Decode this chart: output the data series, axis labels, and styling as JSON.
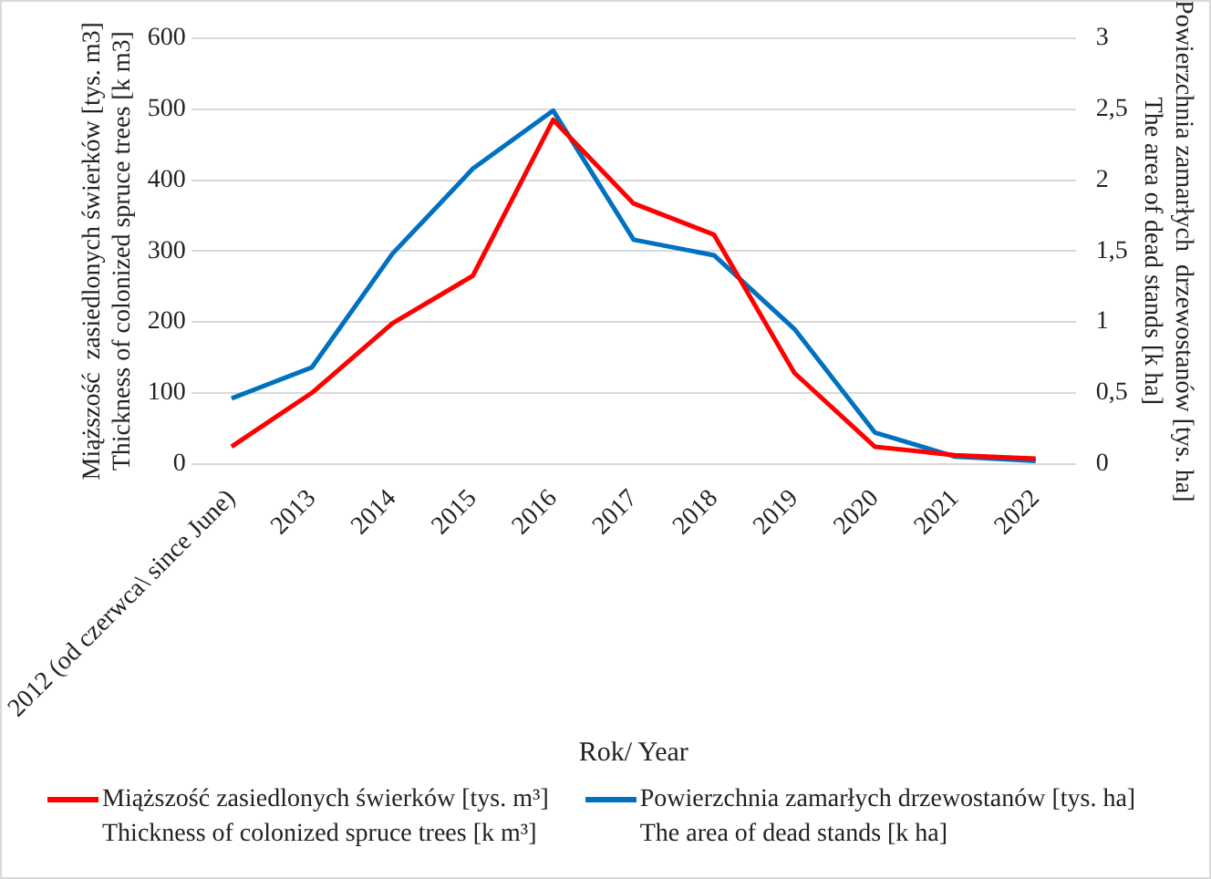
{
  "chart_data": {
    "type": "line",
    "xlabel": "Rok/ Year",
    "ylabel": "Miąższość  zasiedlonych świerków [tys. m3]\nThickness of colonized spruce trees [k m3]",
    "y2label": "Powierzchnia zamarłych  drzewostanów [tys. ha]\nThe area of dead stands [k ha]",
    "categories": [
      "2012 (od czerwca\\ since June)",
      "2013",
      "2014",
      "2015",
      "2016",
      "2017",
      "2018",
      "2019",
      "2020",
      "2021",
      "2022"
    ],
    "series": [
      {
        "name": "Miąższość zasiedlonych świerków [tys. m³]\nThickness of colonized spruce trees [k m³]",
        "color": "#ff0000",
        "values": [
          24,
          100,
          198,
          265,
          485,
          367,
          323,
          128,
          24,
          12,
          7
        ]
      },
      {
        "name": "Powierzchnia zamarłych drzewostanów [tys. ha]\nThe area of dead stands [k ha]",
        "color": "#0070c0",
        "axis": "y2",
        "values": [
          0.46,
          0.68,
          1.48,
          2.08,
          2.49,
          1.58,
          1.47,
          0.95,
          0.22,
          0.05,
          0.02
        ]
      }
    ],
    "ylim": [
      0,
      600
    ],
    "yticks": [
      0,
      100,
      200,
      300,
      400,
      500,
      600
    ],
    "y2lim": [
      0,
      3
    ],
    "y2ticks": [
      0,
      {
        "value": 0.5,
        "label": "0,5"
      },
      1,
      {
        "value": 1.5,
        "label": "1,5"
      },
      2,
      {
        "value": 2.5,
        "label": "2,5"
      },
      3
    ],
    "grid": "y",
    "legend": "bottom",
    "marker": "none",
    "line_style": "solid"
  }
}
